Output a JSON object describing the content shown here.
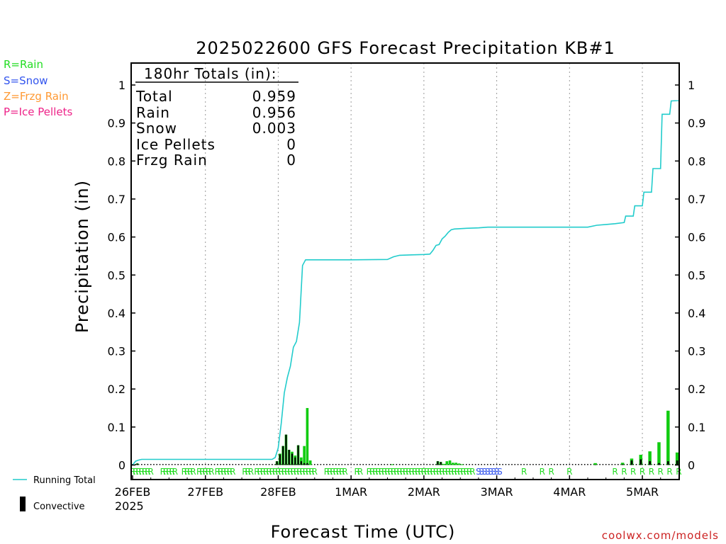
{
  "chart_data": {
    "type": "bar",
    "title": "2025022600 GFS Forecast Precipitation KB#1",
    "ylabel": "Precipitation (in)",
    "xlabel": "Forecast Time (UTC)",
    "ylim": [
      0,
      1.05
    ],
    "xlim_hours": [
      0,
      180
    ],
    "yticks": [
      {
        "v": 0,
        "label": "0"
      },
      {
        "v": 0.1,
        "label": "0.1"
      },
      {
        "v": 0.2,
        "label": "0.2"
      },
      {
        "v": 0.3,
        "label": "0.3"
      },
      {
        "v": 0.4,
        "label": "0.4"
      },
      {
        "v": 0.5,
        "label": "0.5"
      },
      {
        "v": 0.6,
        "label": "0.6"
      },
      {
        "v": 0.7,
        "label": "0.7"
      },
      {
        "v": 0.8,
        "label": "0.8"
      },
      {
        "v": 0.9,
        "label": "0.9"
      },
      {
        "v": 1,
        "label": "1"
      }
    ],
    "xticks": [
      {
        "h": 0,
        "label": "26FEB"
      },
      {
        "h": 24,
        "label": "27FEB"
      },
      {
        "h": 48,
        "label": "28FEB"
      },
      {
        "h": 72,
        "label": "1MAR"
      },
      {
        "h": 96,
        "label": "2MAR"
      },
      {
        "h": 120,
        "label": "3MAR"
      },
      {
        "h": 144,
        "label": "4MAR"
      },
      {
        "h": 168,
        "label": "5MAR"
      }
    ],
    "year_label": "2025",
    "grid": true,
    "totals_box": {
      "header": "180hr Totals (in):",
      "rows": [
        {
          "label": "Total",
          "value": "0.959"
        },
        {
          "label": "Rain",
          "value": "0.956"
        },
        {
          "label": "Snow",
          "value": "0.003"
        },
        {
          "label": "Ice Pellets",
          "value": "0"
        },
        {
          "label": "Frzg Rain",
          "value": "0"
        }
      ]
    },
    "ptype_legend": [
      {
        "text": "R=Rain",
        "color": "#22dd22"
      },
      {
        "text": "S=Snow",
        "color": "#3355ee"
      },
      {
        "text": "Z=Frzg Rain",
        "color": "#ff9933"
      },
      {
        "text": "P=Ice Pellets",
        "color": "#ee2288"
      }
    ],
    "series_legend": {
      "running_total": "Running Total",
      "convective": "Convective",
      "running_total_color": "#22cccc",
      "bar_color": "#11cc11",
      "convective_color": "#000000"
    },
    "bars_hourly": [
      {
        "h": 2,
        "v": 0.004,
        "c": 0.004
      },
      {
        "h": 48,
        "v": 0.01,
        "c": 0.01
      },
      {
        "h": 49,
        "v": 0.03,
        "c": 0.028
      },
      {
        "h": 50,
        "v": 0.05,
        "c": 0.05
      },
      {
        "h": 51,
        "v": 0.08,
        "c": 0.08
      },
      {
        "h": 52,
        "v": 0.04,
        "c": 0.04
      },
      {
        "h": 53,
        "v": 0.035,
        "c": 0.03
      },
      {
        "h": 54,
        "v": 0.025,
        "c": 0.02
      },
      {
        "h": 55,
        "v": 0.052,
        "c": 0.052
      },
      {
        "h": 56,
        "v": 0.02,
        "c": 0.01
      },
      {
        "h": 57,
        "v": 0.05,
        "c": 0.005
      },
      {
        "h": 58,
        "v": 0.15,
        "c": 0.005
      },
      {
        "h": 59,
        "v": 0.012,
        "c": 0.0
      },
      {
        "h": 86,
        "v": 0.002,
        "c": 0.0
      },
      {
        "h": 101,
        "v": 0.01,
        "c": 0.01
      },
      {
        "h": 102,
        "v": 0.008,
        "c": 0.008
      },
      {
        "h": 103,
        "v": 0.003,
        "c": 0.0
      },
      {
        "h": 104,
        "v": 0.01,
        "c": 0.0
      },
      {
        "h": 105,
        "v": 0.012,
        "c": 0.0
      },
      {
        "h": 106,
        "v": 0.006,
        "c": 0.0
      },
      {
        "h": 107,
        "v": 0.006,
        "c": 0.0
      },
      {
        "h": 108,
        "v": 0.004,
        "c": 0.0
      },
      {
        "h": 109,
        "v": 0.002,
        "c": 0.0
      }
    ],
    "bars_3hourly": [
      {
        "h": 153,
        "v": 0.005,
        "c": 0.001
      },
      {
        "h": 162,
        "v": 0.006,
        "c": 0.002
      },
      {
        "h": 165,
        "v": 0.017,
        "c": 0.012
      },
      {
        "h": 168,
        "v": 0.027,
        "c": 0.015
      },
      {
        "h": 171,
        "v": 0.036,
        "c": 0.01
      },
      {
        "h": 174,
        "v": 0.06,
        "c": 0.005
      },
      {
        "h": 177,
        "v": 0.143,
        "c": 0.01
      },
      {
        "h": 180,
        "v": 0.033,
        "c": 0.012
      }
    ],
    "running_total": [
      [
        0,
        0
      ],
      [
        1,
        0.01
      ],
      [
        2,
        0.013
      ],
      [
        3,
        0.015
      ],
      [
        24,
        0.015
      ],
      [
        46,
        0.015
      ],
      [
        47,
        0.02
      ],
      [
        48,
        0.045
      ],
      [
        49,
        0.11
      ],
      [
        50,
        0.19
      ],
      [
        51,
        0.23
      ],
      [
        52,
        0.26
      ],
      [
        53,
        0.31
      ],
      [
        54,
        0.325
      ],
      [
        55,
        0.375
      ],
      [
        56,
        0.525
      ],
      [
        57,
        0.54
      ],
      [
        72,
        0.54
      ],
      [
        84,
        0.541
      ],
      [
        86,
        0.548
      ],
      [
        88,
        0.552
      ],
      [
        92,
        0.553
      ],
      [
        96,
        0.554
      ],
      [
        98,
        0.555
      ],
      [
        99,
        0.565
      ],
      [
        100,
        0.578
      ],
      [
        101,
        0.58
      ],
      [
        102,
        0.595
      ],
      [
        103,
        0.602
      ],
      [
        104,
        0.612
      ],
      [
        105,
        0.619
      ],
      [
        106,
        0.621
      ],
      [
        110,
        0.623
      ],
      [
        114,
        0.624
      ],
      [
        117,
        0.626
      ],
      [
        120,
        0.626
      ],
      [
        132,
        0.626
      ],
      [
        150,
        0.626
      ],
      [
        153,
        0.631
      ],
      [
        156,
        0.633
      ],
      [
        159,
        0.635
      ],
      [
        162,
        0.638
      ],
      [
        162.5,
        0.655
      ],
      [
        165,
        0.655
      ],
      [
        165.5,
        0.682
      ],
      [
        168,
        0.682
      ],
      [
        168.5,
        0.718
      ],
      [
        171,
        0.718
      ],
      [
        171.5,
        0.78
      ],
      [
        174,
        0.78
      ],
      [
        174.5,
        0.923
      ],
      [
        177,
        0.923
      ],
      [
        177.5,
        0.958
      ],
      [
        180,
        0.959
      ]
    ],
    "ptype_hourly": [
      {
        "t": "R",
        "from": 0,
        "to": 6
      },
      {
        "t": "R",
        "from": 10,
        "to": 14
      },
      {
        "t": "R",
        "from": 17,
        "to": 20
      },
      {
        "t": "R",
        "from": 22,
        "to": 26
      },
      {
        "t": "R",
        "from": 28,
        "to": 33
      },
      {
        "t": "R",
        "from": 37,
        "to": 39
      },
      {
        "t": "R",
        "from": 41,
        "to": 60
      },
      {
        "t": "R",
        "from": 64,
        "to": 70
      },
      {
        "t": "R",
        "from": 74,
        "to": 75
      },
      {
        "t": "R",
        "from": 78,
        "to": 112
      },
      {
        "t": "S",
        "from": 114,
        "to": 121
      }
    ],
    "ptype_single": [
      {
        "t": "R",
        "h": 129
      },
      {
        "t": "R",
        "h": 135
      },
      {
        "t": "R",
        "h": 138
      },
      {
        "t": "R",
        "h": 144
      },
      {
        "t": "R",
        "h": 159
      },
      {
        "t": "R",
        "h": 162
      },
      {
        "t": "R",
        "h": 165
      },
      {
        "t": "R",
        "h": 168
      },
      {
        "t": "R",
        "h": 171
      },
      {
        "t": "R",
        "h": 174
      },
      {
        "t": "R",
        "h": 177
      },
      {
        "t": "R",
        "h": 180
      },
      {
        "t": "R",
        "h": 183
      }
    ]
  },
  "footer": {
    "credit": "coolwx.com/models"
  }
}
